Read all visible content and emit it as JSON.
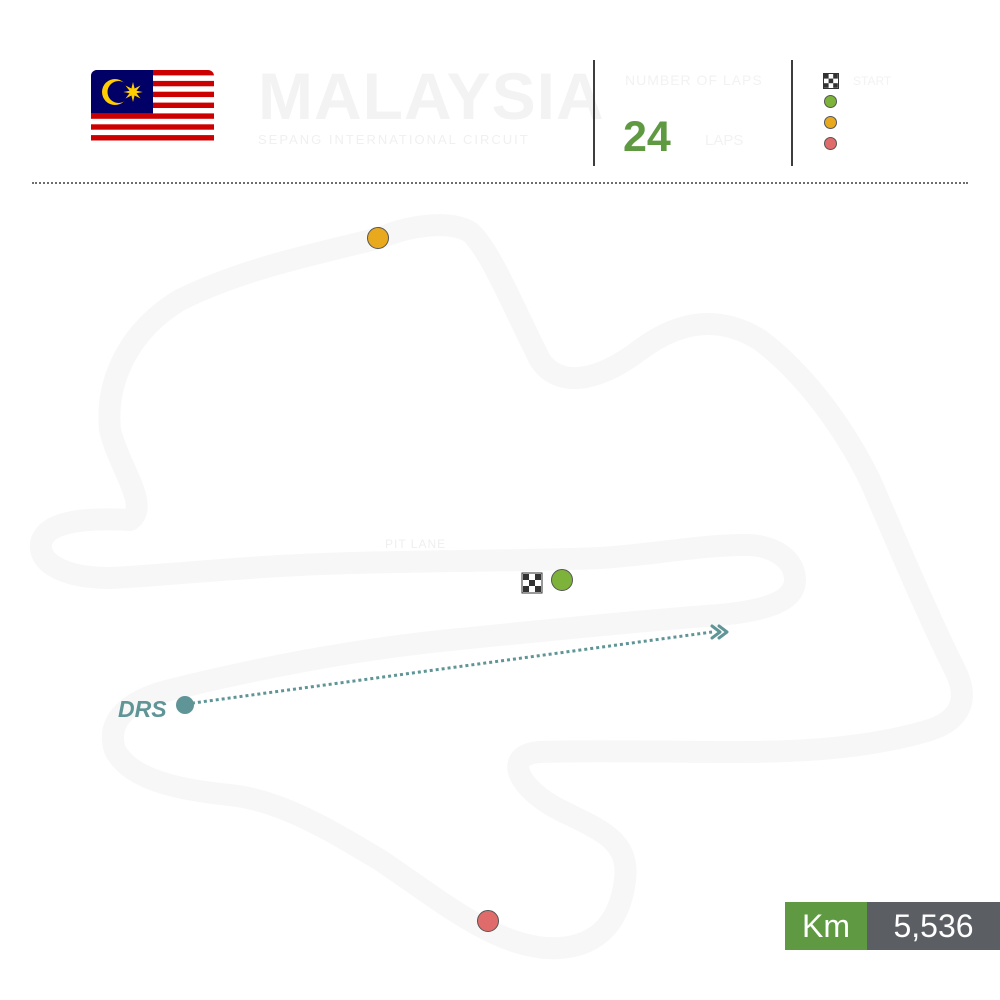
{
  "header": {
    "country": "MALAYSIA",
    "circuit": "SEPANG INTERNATIONAL CIRCUIT",
    "laps_label": "NUMBER OF LAPS",
    "laps_value": "24",
    "laps_unit": "LAPS",
    "flag_icon": "malaysia-flag-icon"
  },
  "legend": {
    "items": [
      {
        "icon": "checkered-flag-icon",
        "label": "START",
        "color": ""
      },
      {
        "icon": "green-dot-icon",
        "label": "",
        "color": "#7db33a"
      },
      {
        "icon": "yellow-dot-icon",
        "label": "",
        "color": "#e8a91e"
      },
      {
        "icon": "red-dot-icon",
        "label": "",
        "color": "#df6b6b"
      }
    ]
  },
  "map": {
    "pit_label": "PIT LANE",
    "drs_label": "DRS",
    "colors": {
      "green": "#7db33a",
      "yellow": "#e8a91e",
      "red": "#df6b6b",
      "drs": "#5f9596",
      "track": "#f7f7f7"
    }
  },
  "length": {
    "unit": "Km",
    "value": "5,536"
  }
}
